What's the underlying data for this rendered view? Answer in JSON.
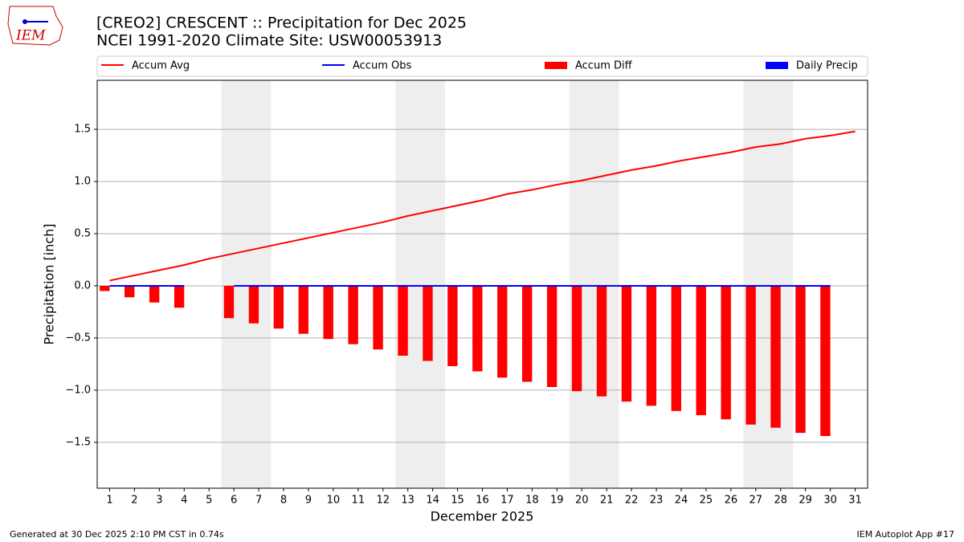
{
  "logo_text": "IEM",
  "footer_left": "Generated at 30 Dec 2025 2:10 PM CST in 0.74s",
  "footer_right": "IEM Autoplot App #17",
  "chart_data": {
    "type": "combo",
    "title": "[CREO2] CRESCENT :: Precipitation for Dec 2025",
    "subtitle": "NCEI 1991-2020 Climate Site: USW00053913",
    "xlabel": "December 2025",
    "ylabel": "Precipitation [inch]",
    "x": [
      1,
      2,
      3,
      4,
      5,
      6,
      7,
      8,
      9,
      10,
      11,
      12,
      13,
      14,
      15,
      16,
      17,
      18,
      19,
      20,
      21,
      22,
      23,
      24,
      25,
      26,
      27,
      28,
      29,
      30,
      31
    ],
    "xlim": [
      0.5,
      31.5
    ],
    "xticks": [
      1,
      2,
      3,
      4,
      5,
      6,
      7,
      8,
      9,
      10,
      11,
      12,
      13,
      14,
      15,
      16,
      17,
      18,
      19,
      20,
      21,
      22,
      23,
      24,
      25,
      26,
      27,
      28,
      29,
      30,
      31
    ],
    "ylim": [
      -1.94,
      1.97
    ],
    "yticks": [
      {
        "value": -1.5,
        "label": "−1.5"
      },
      {
        "value": -1,
        "label": "−1.0"
      },
      {
        "value": -0.5,
        "label": "−0.5"
      },
      {
        "value": 0,
        "label": "0.0"
      },
      0.5,
      {
        "value": 1,
        "label": "1.0"
      },
      1.5
    ],
    "grid": true,
    "shaded_spans": [
      [
        5.5,
        7.5
      ],
      [
        12.5,
        14.5
      ],
      [
        19.5,
        21.5
      ],
      [
        26.5,
        28.5
      ]
    ],
    "shade_color": "#eeeeee",
    "series": [
      {
        "name": "Accum Avg",
        "kind": "line",
        "color": "#ff0000",
        "values": [
          0.05,
          0.1,
          0.15,
          0.2,
          0.26,
          0.31,
          0.36,
          0.41,
          0.46,
          0.51,
          0.56,
          0.61,
          0.67,
          0.72,
          0.77,
          0.82,
          0.88,
          0.92,
          0.97,
          1.01,
          1.06,
          1.11,
          1.15,
          1.2,
          1.24,
          1.28,
          1.33,
          1.36,
          1.41,
          1.44,
          1.48
        ]
      },
      {
        "name": "Accum Obs",
        "kind": "line",
        "color": "#0000ff",
        "values": [
          0,
          0,
          0,
          0,
          null,
          0,
          0,
          0,
          0,
          0,
          0,
          0,
          0,
          0,
          0,
          0,
          0,
          0,
          0,
          0,
          0,
          0,
          0,
          0,
          0,
          0,
          0,
          0,
          0,
          0,
          null
        ]
      },
      {
        "name": "Accum Diff",
        "kind": "bar",
        "color": "#ff0000",
        "values": [
          -0.05,
          -0.11,
          -0.16,
          -0.21,
          null,
          -0.31,
          -0.36,
          -0.41,
          -0.46,
          -0.51,
          -0.56,
          -0.61,
          -0.67,
          -0.72,
          -0.77,
          -0.82,
          -0.88,
          -0.92,
          -0.97,
          -1.01,
          -1.06,
          -1.11,
          -1.15,
          -1.2,
          -1.24,
          -1.28,
          -1.33,
          -1.36,
          -1.41,
          -1.44,
          null
        ]
      },
      {
        "name": "Daily Precip",
        "kind": "bar",
        "color": "#0000ff",
        "values": [
          0,
          0,
          0,
          0,
          null,
          0,
          0,
          0,
          0,
          0,
          0,
          0,
          0,
          0,
          0,
          0,
          0,
          0,
          0,
          0,
          0,
          0,
          0,
          0,
          0,
          0,
          0,
          0,
          0,
          0,
          null
        ]
      }
    ]
  }
}
